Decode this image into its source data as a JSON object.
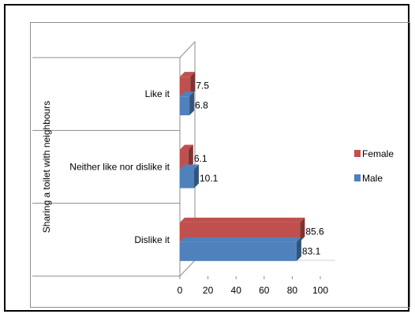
{
  "chart_data": {
    "type": "bar",
    "orientation": "horizontal",
    "style": "3d",
    "ylabel": "Sharing a toilet with neighbours",
    "categories": [
      "Like it",
      "Neither like nor dislike it",
      "Dislike it"
    ],
    "series": [
      {
        "name": "Female",
        "color": "#c0504d",
        "values": [
          7.5,
          6.1,
          85.6
        ]
      },
      {
        "name": "Male",
        "color": "#4f81bd",
        "values": [
          6.8,
          10.1,
          83.1
        ]
      }
    ],
    "xlim": [
      0,
      100
    ],
    "xticks": [
      0,
      20,
      40,
      60,
      80,
      100
    ],
    "legend_position": "right",
    "grid": false
  }
}
